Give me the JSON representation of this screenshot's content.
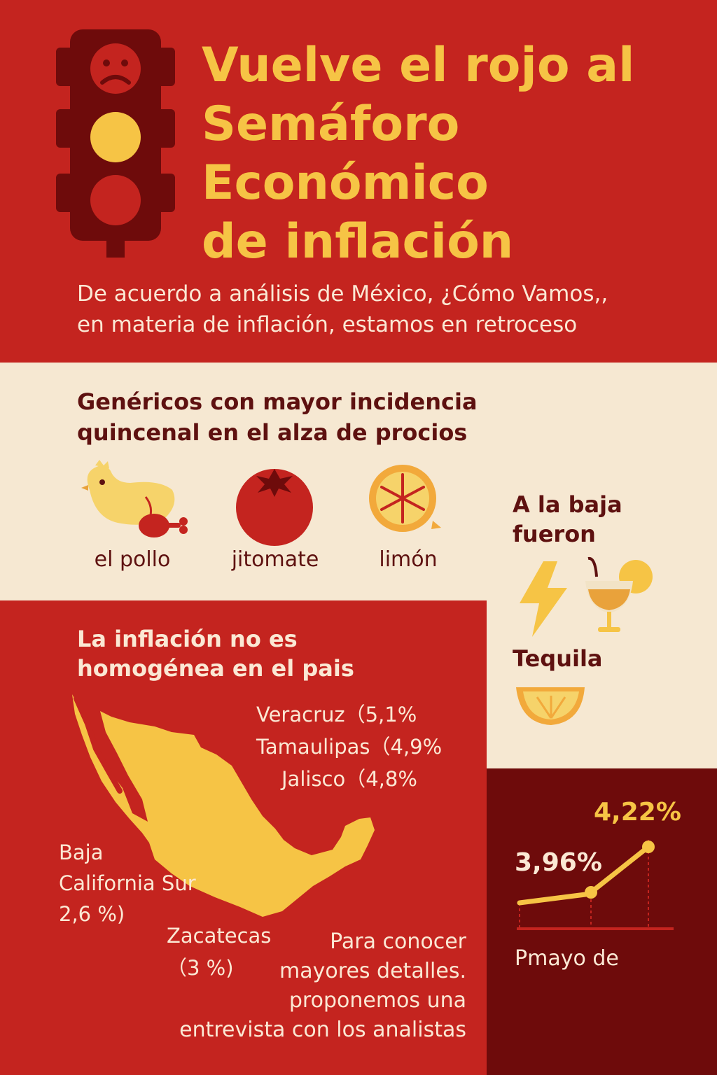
{
  "header": {
    "title_lines": [
      "Vuelve el rojo al",
      "Semáforo",
      "Económico",
      "de inflación"
    ],
    "subtitle_lines": [
      "De acuerdo a análisis de México, ¿Cómo Vamos,,",
      "en materia de inflación, estamos en retroceso"
    ]
  },
  "generics": {
    "title_lines": [
      "Genéricos con mayor incidencia",
      "quincenal en el alza de procios"
    ],
    "items": [
      {
        "label": "el pollo",
        "icon": "chicken-icon"
      },
      {
        "label": "jitomate",
        "icon": "tomato-icon"
      },
      {
        "label": "limón",
        "icon": "lemon-icon"
      }
    ]
  },
  "baja": {
    "title_lines": [
      "A la baja",
      "fueron"
    ],
    "tequila_label": "Tequila",
    "icons": [
      "lightning-icon",
      "cocktail-icon",
      "orange-slice-icon"
    ]
  },
  "map": {
    "title_lines": [
      "La inflación no es",
      "homogénea en el pais"
    ],
    "states": {
      "veracruz": "Veracruz（5,1%",
      "tamaulipas": "Tamaulipas（4,9%",
      "jalisco": "Jalisco（4,8%",
      "bcs_lines": [
        "Baja",
        "California Sur",
        "2,6 %)"
      ],
      "zacatecas_lines": [
        "Zacatecas",
        "（3 %)"
      ]
    }
  },
  "details_lines": [
    "Para conocer",
    "mayores detalles.",
    "proponemos una",
    "entrevista con los analistas"
  ],
  "inflation": {
    "previous_label": "3,96%",
    "current_label": "4,22%",
    "caption": "Pmayo de"
  },
  "chart_data": {
    "type": "line",
    "series": [
      {
        "values": [
          3.96,
          4.22
        ]
      }
    ]
  },
  "colors": {
    "red": "#c4241f",
    "dark_red": "#6e0b0b",
    "cream": "#f6e8d2",
    "yellow": "#f6c445",
    "brown": "#5e1110"
  }
}
